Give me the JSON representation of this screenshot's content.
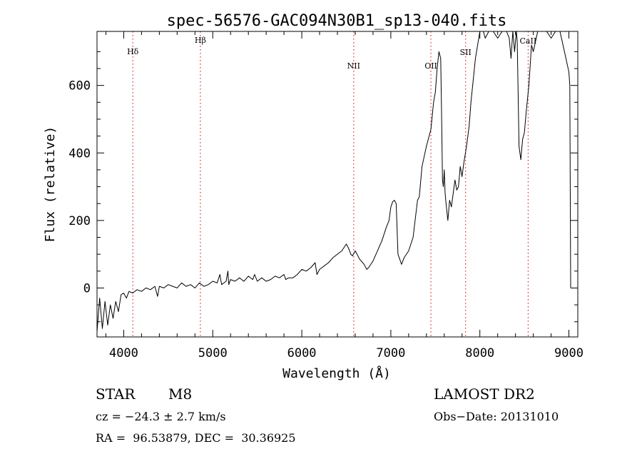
{
  "chart_data": {
    "type": "line",
    "title": "spec-56576-GAC094N30B1_sp13-040.fits",
    "xlabel": "Wavelength (Å)",
    "ylabel": "Flux (relative)",
    "xlim": [
      3700,
      9100
    ],
    "ylim": [
      -145,
      760
    ],
    "x_ticks": [
      4000,
      5000,
      6000,
      7000,
      8000,
      9000
    ],
    "x_tick_labels": [
      "4000",
      "5000",
      "6000",
      "7000",
      "8000",
      "9000"
    ],
    "y_ticks": [
      0,
      200,
      400,
      600
    ],
    "y_tick_labels": [
      "0",
      "200",
      "400",
      "600"
    ],
    "grid": false,
    "line_color": "#000000",
    "marker_color": "#cc0000",
    "lines": [
      {
        "label": "Hδ",
        "x": 4102
      },
      {
        "label": "Hβ",
        "x": 4861
      },
      {
        "label": "NII",
        "x": 6583
      },
      {
        "label": "OII",
        "x": 7450
      },
      {
        "label": "SII",
        "x": 7840
      },
      {
        "label": "CaII",
        "x": 8542
      }
    ],
    "series": [
      {
        "x": [
          3700,
          3730,
          3760,
          3790,
          3820,
          3850,
          3880,
          3910,
          3940,
          3970,
          4000,
          4030,
          4060,
          4100,
          4150,
          4200,
          4250,
          4300,
          4350,
          4380,
          4400,
          4450,
          4500,
          4550,
          4600,
          4650,
          4700,
          4750,
          4800,
          4850,
          4900,
          4950,
          5000,
          5050,
          5080,
          5100,
          5150,
          5170,
          5180,
          5200,
          5250,
          5300,
          5350,
          5400,
          5450,
          5470,
          5500,
          5550,
          5600,
          5650,
          5700,
          5750,
          5800,
          5820,
          5850,
          5900,
          5950,
          6000,
          6050,
          6100,
          6150,
          6170,
          6200,
          6250,
          6300,
          6350,
          6400,
          6450,
          6500,
          6530,
          6550,
          6570,
          6600,
          6650,
          6700,
          6730,
          6750,
          6800,
          6850,
          6900,
          6950,
          6980,
          7000,
          7020,
          7040,
          7060,
          7080,
          7100,
          7120,
          7150,
          7200,
          7250,
          7300,
          7320,
          7350,
          7400,
          7450,
          7480,
          7500,
          7520,
          7540,
          7560,
          7570,
          7580,
          7590,
          7600,
          7610,
          7620,
          7640,
          7660,
          7680,
          7700,
          7720,
          7740,
          7760,
          7780,
          7800,
          7820,
          7850,
          7880,
          7900,
          7950,
          8000,
          8040,
          8060,
          8100,
          8150,
          8200,
          8250,
          8300,
          8330,
          8350,
          8370,
          8390,
          8410,
          8420,
          8440,
          8460,
          8480,
          8500,
          8520,
          8550,
          8580,
          8600,
          8650,
          8700,
          8750,
          8800,
          8850,
          8900,
          8950,
          9000,
          9010,
          9020
        ],
        "y": [
          -130,
          -30,
          -120,
          -40,
          -110,
          -50,
          -90,
          -40,
          -70,
          -20,
          -15,
          -30,
          -10,
          -15,
          -5,
          -10,
          0,
          -5,
          5,
          -25,
          5,
          0,
          10,
          5,
          0,
          15,
          5,
          10,
          0,
          15,
          5,
          10,
          20,
          15,
          40,
          10,
          20,
          50,
          10,
          25,
          20,
          30,
          20,
          35,
          25,
          40,
          20,
          30,
          20,
          25,
          35,
          30,
          40,
          25,
          30,
          30,
          40,
          55,
          50,
          60,
          75,
          40,
          55,
          65,
          75,
          90,
          100,
          110,
          130,
          115,
          100,
          95,
          110,
          85,
          70,
          55,
          60,
          80,
          110,
          140,
          180,
          200,
          240,
          255,
          260,
          250,
          100,
          85,
          70,
          90,
          110,
          150,
          260,
          270,
          360,
          420,
          470,
          550,
          580,
          650,
          700,
          680,
          520,
          320,
          300,
          350,
          280,
          250,
          200,
          260,
          240,
          280,
          320,
          290,
          300,
          360,
          330,
          370,
          420,
          480,
          550,
          680,
          760,
          760,
          740,
          760,
          760,
          740,
          760,
          760,
          740,
          680,
          760,
          700,
          760,
          730,
          420,
          380,
          440,
          460,
          520,
          600,
          720,
          700,
          760,
          760,
          760,
          740,
          760,
          760,
          700,
          640,
          600,
          0
        ]
      }
    ]
  },
  "info": {
    "class_label": "STAR",
    "subclass": "M8",
    "survey": "LAMOST DR2",
    "cz_text": "cz = −24.3 ± 2.7 km/s",
    "obs_date": "Obs−Date: 20131010",
    "radec_text": "RA =  96.53879, DEC =  30.36925"
  }
}
